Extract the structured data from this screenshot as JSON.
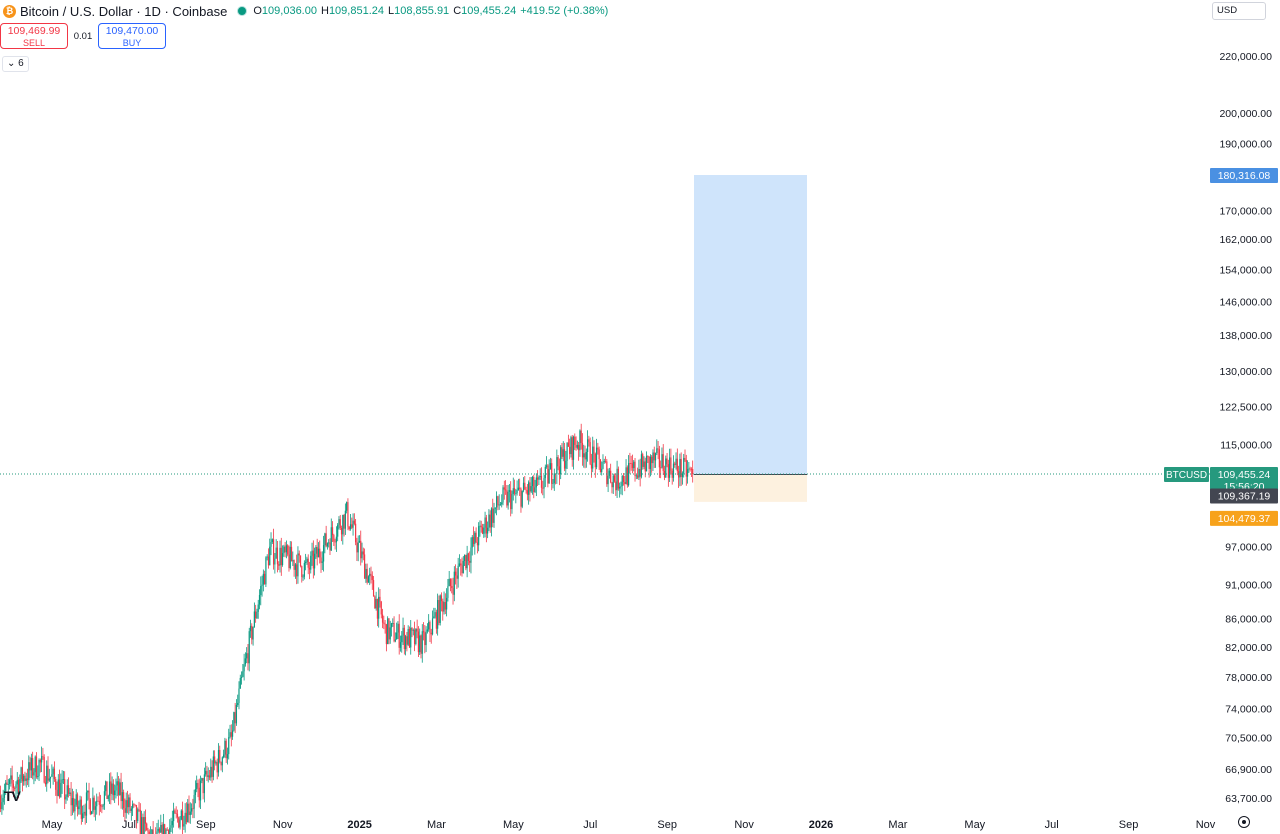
{
  "header": {
    "symbol_title": "Bitcoin / U.S. Dollar · 1D · Coinbase",
    "ohlc": {
      "open_label": "O",
      "open": "109,036.00",
      "high_label": "H",
      "high": "109,851.24",
      "low_label": "L",
      "low": "108,855.91",
      "close_label": "C",
      "close": "109,455.24",
      "change": "+419.52 (+0.38%)"
    },
    "sell_price": "109,469.99",
    "sell_label": "SELL",
    "spread": "0.01",
    "buy_price": "109,470.00",
    "buy_label": "BUY",
    "indicator_toggle": "6",
    "currency": "USD"
  },
  "colors": {
    "up": "#089981",
    "down": "#f23645",
    "profit_zone": "#cfe4fb",
    "loss_zone": "#fdf1df",
    "target_label": "#4a90e2",
    "stop_label": "#f7a21b",
    "entry_label": "#434651",
    "last_price_label": "#26997e"
  },
  "chart_data": {
    "type": "candlestick",
    "symbol": "BTCUSD",
    "timeframe": "1D",
    "x_axis_labels": [
      "May",
      "Jul",
      "Sep",
      "Nov",
      "2025",
      "Mar",
      "May",
      "Jul",
      "Sep",
      "Nov",
      "2026",
      "Mar",
      "May",
      "Jul",
      "Sep",
      "Nov"
    ],
    "y_axis_labels": [
      "220,000.00",
      "200,000.00",
      "190,000.00",
      "170,000.00",
      "162,000.00",
      "154,000.00",
      "146,000.00",
      "138,000.00",
      "130,000.00",
      "122,500.00",
      "115,000.00",
      "97,000.00",
      "91,000.00",
      "86,000.00",
      "82,000.00",
      "78,000.00",
      "74,000.00",
      "70,500.00",
      "66,900.00",
      "63,700.00"
    ],
    "y_scale": "log",
    "series": [
      {
        "period": "2024-04",
        "close": 64000
      },
      {
        "period": "2024-05",
        "close": 67500
      },
      {
        "period": "2024-06",
        "close": 62700
      },
      {
        "period": "2024-07",
        "close": 64600
      },
      {
        "period": "2024-08",
        "close": 59000
      },
      {
        "period": "2024-09",
        "close": 63300
      },
      {
        "period": "2024-10",
        "close": 70200
      },
      {
        "period": "2024-11",
        "close": 96400
      },
      {
        "period": "2024-12",
        "close": 93400
      },
      {
        "period": "2025-01",
        "close": 102400
      },
      {
        "period": "2025-02",
        "close": 84300
      },
      {
        "period": "2025-03",
        "close": 82500
      },
      {
        "period": "2025-04",
        "close": 94200
      },
      {
        "period": "2025-05",
        "close": 104600
      },
      {
        "period": "2025-06",
        "close": 107100
      },
      {
        "period": "2025-07",
        "close": 115700
      },
      {
        "period": "2025-08",
        "close": 108200
      },
      {
        "period": "2025-09",
        "close": 112000
      },
      {
        "period": "2025-10",
        "close": 109455
      }
    ],
    "position": {
      "type": "long",
      "target": 180316.08,
      "entry": 109367.19,
      "stop": 104479.37,
      "target_label": "180,316.08",
      "entry_label": "109,367.19",
      "stop_label": "104,479.37"
    },
    "last_price": {
      "value": 109455.24,
      "label": "109,455.24",
      "countdown": "15:56:20",
      "symbol_tag": "BTCUSD"
    },
    "grid": false
  }
}
